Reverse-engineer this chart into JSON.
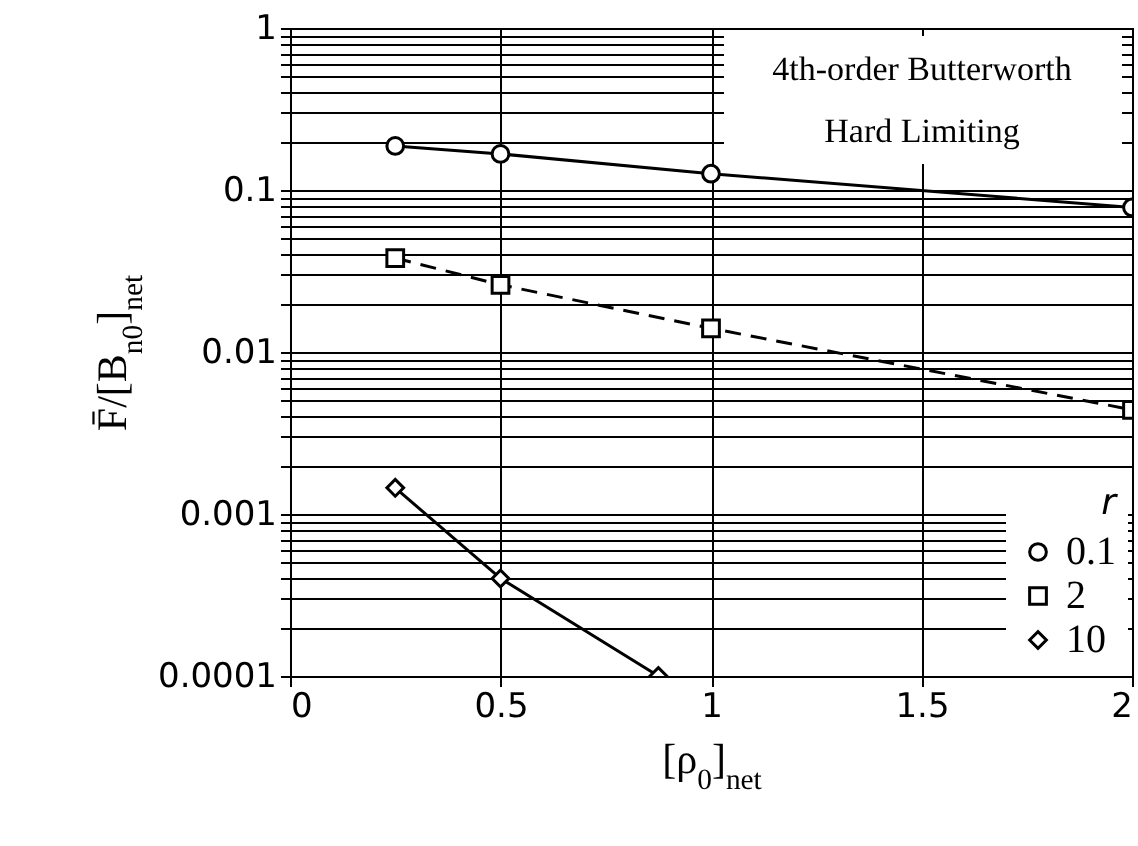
{
  "chart_data": {
    "type": "line",
    "xlabel": "[ρ$_{0}$]$_{net}$",
    "ylabel": "F̄/[B$_{n0}$]$_{net}$",
    "legend_title": "r",
    "annotations": [
      "4th-order Butterworth",
      "Hard Limiting"
    ],
    "log": "y",
    "grid": true,
    "legend": "bottom right",
    "xlim": [
      0,
      2
    ],
    "xticks": [
      0,
      0.5,
      1,
      1.5,
      2
    ],
    "ylim": [
      0.0001,
      1
    ],
    "yticks": [
      0.0001,
      {
        "value": 0.0002,
        "label": null
      },
      {
        "value": 0.0003,
        "label": null
      },
      {
        "value": 0.0004,
        "label": null
      },
      {
        "value": 0.0005,
        "label": null
      },
      {
        "value": 0.0006,
        "label": null
      },
      {
        "value": 0.0007,
        "label": null
      },
      {
        "value": 0.0008,
        "label": null
      },
      {
        "value": 0.0009,
        "label": null
      },
      0.001,
      {
        "value": 0.002,
        "label": null
      },
      {
        "value": 0.003,
        "label": null
      },
      {
        "value": 0.004,
        "label": null
      },
      {
        "value": 0.005,
        "label": null
      },
      {
        "value": 0.006,
        "label": null
      },
      {
        "value": 0.007,
        "label": null
      },
      {
        "value": 0.008,
        "label": null
      },
      {
        "value": 0.009,
        "label": null
      },
      0.01,
      {
        "value": 0.02,
        "label": null
      },
      {
        "value": 0.03,
        "label": null
      },
      {
        "value": 0.04,
        "label": null
      },
      {
        "value": 0.05,
        "label": null
      },
      {
        "value": 0.06,
        "label": null
      },
      {
        "value": 0.07,
        "label": null
      },
      {
        "value": 0.08,
        "label": null
      },
      {
        "value": 0.09,
        "label": null
      },
      0.1,
      {
        "value": 0.2,
        "label": null
      },
      {
        "value": 0.3,
        "label": null
      },
      {
        "value": 0.4,
        "label": null
      },
      {
        "value": 0.5,
        "label": null
      },
      {
        "value": 0.6,
        "label": null
      },
      {
        "value": 0.7,
        "label": null
      },
      {
        "value": 0.8,
        "label": null
      },
      {
        "value": 0.9,
        "label": null
      },
      1
    ],
    "series": [
      {
        "name": "0.1",
        "color": "#000000",
        "marker": "circle",
        "line_style": "solid",
        "x": [
          0.25,
          0.5,
          1,
          2
        ],
        "values": [
          0.187,
          0.167,
          0.126,
          0.078
        ]
      },
      {
        "name": "2",
        "color": "#000000",
        "marker": "square",
        "line_style": "dashed",
        "x": [
          0.25,
          0.5,
          1,
          2
        ],
        "values": [
          0.038,
          0.026,
          0.014,
          0.0044
        ]
      },
      {
        "name": "10",
        "color": "#000000",
        "marker": "diamond",
        "line_style": "solid",
        "x": [
          0.25,
          0.5,
          0.875
        ],
        "values": [
          0.00145,
          0.0004,
          0.0001
        ]
      }
    ]
  }
}
